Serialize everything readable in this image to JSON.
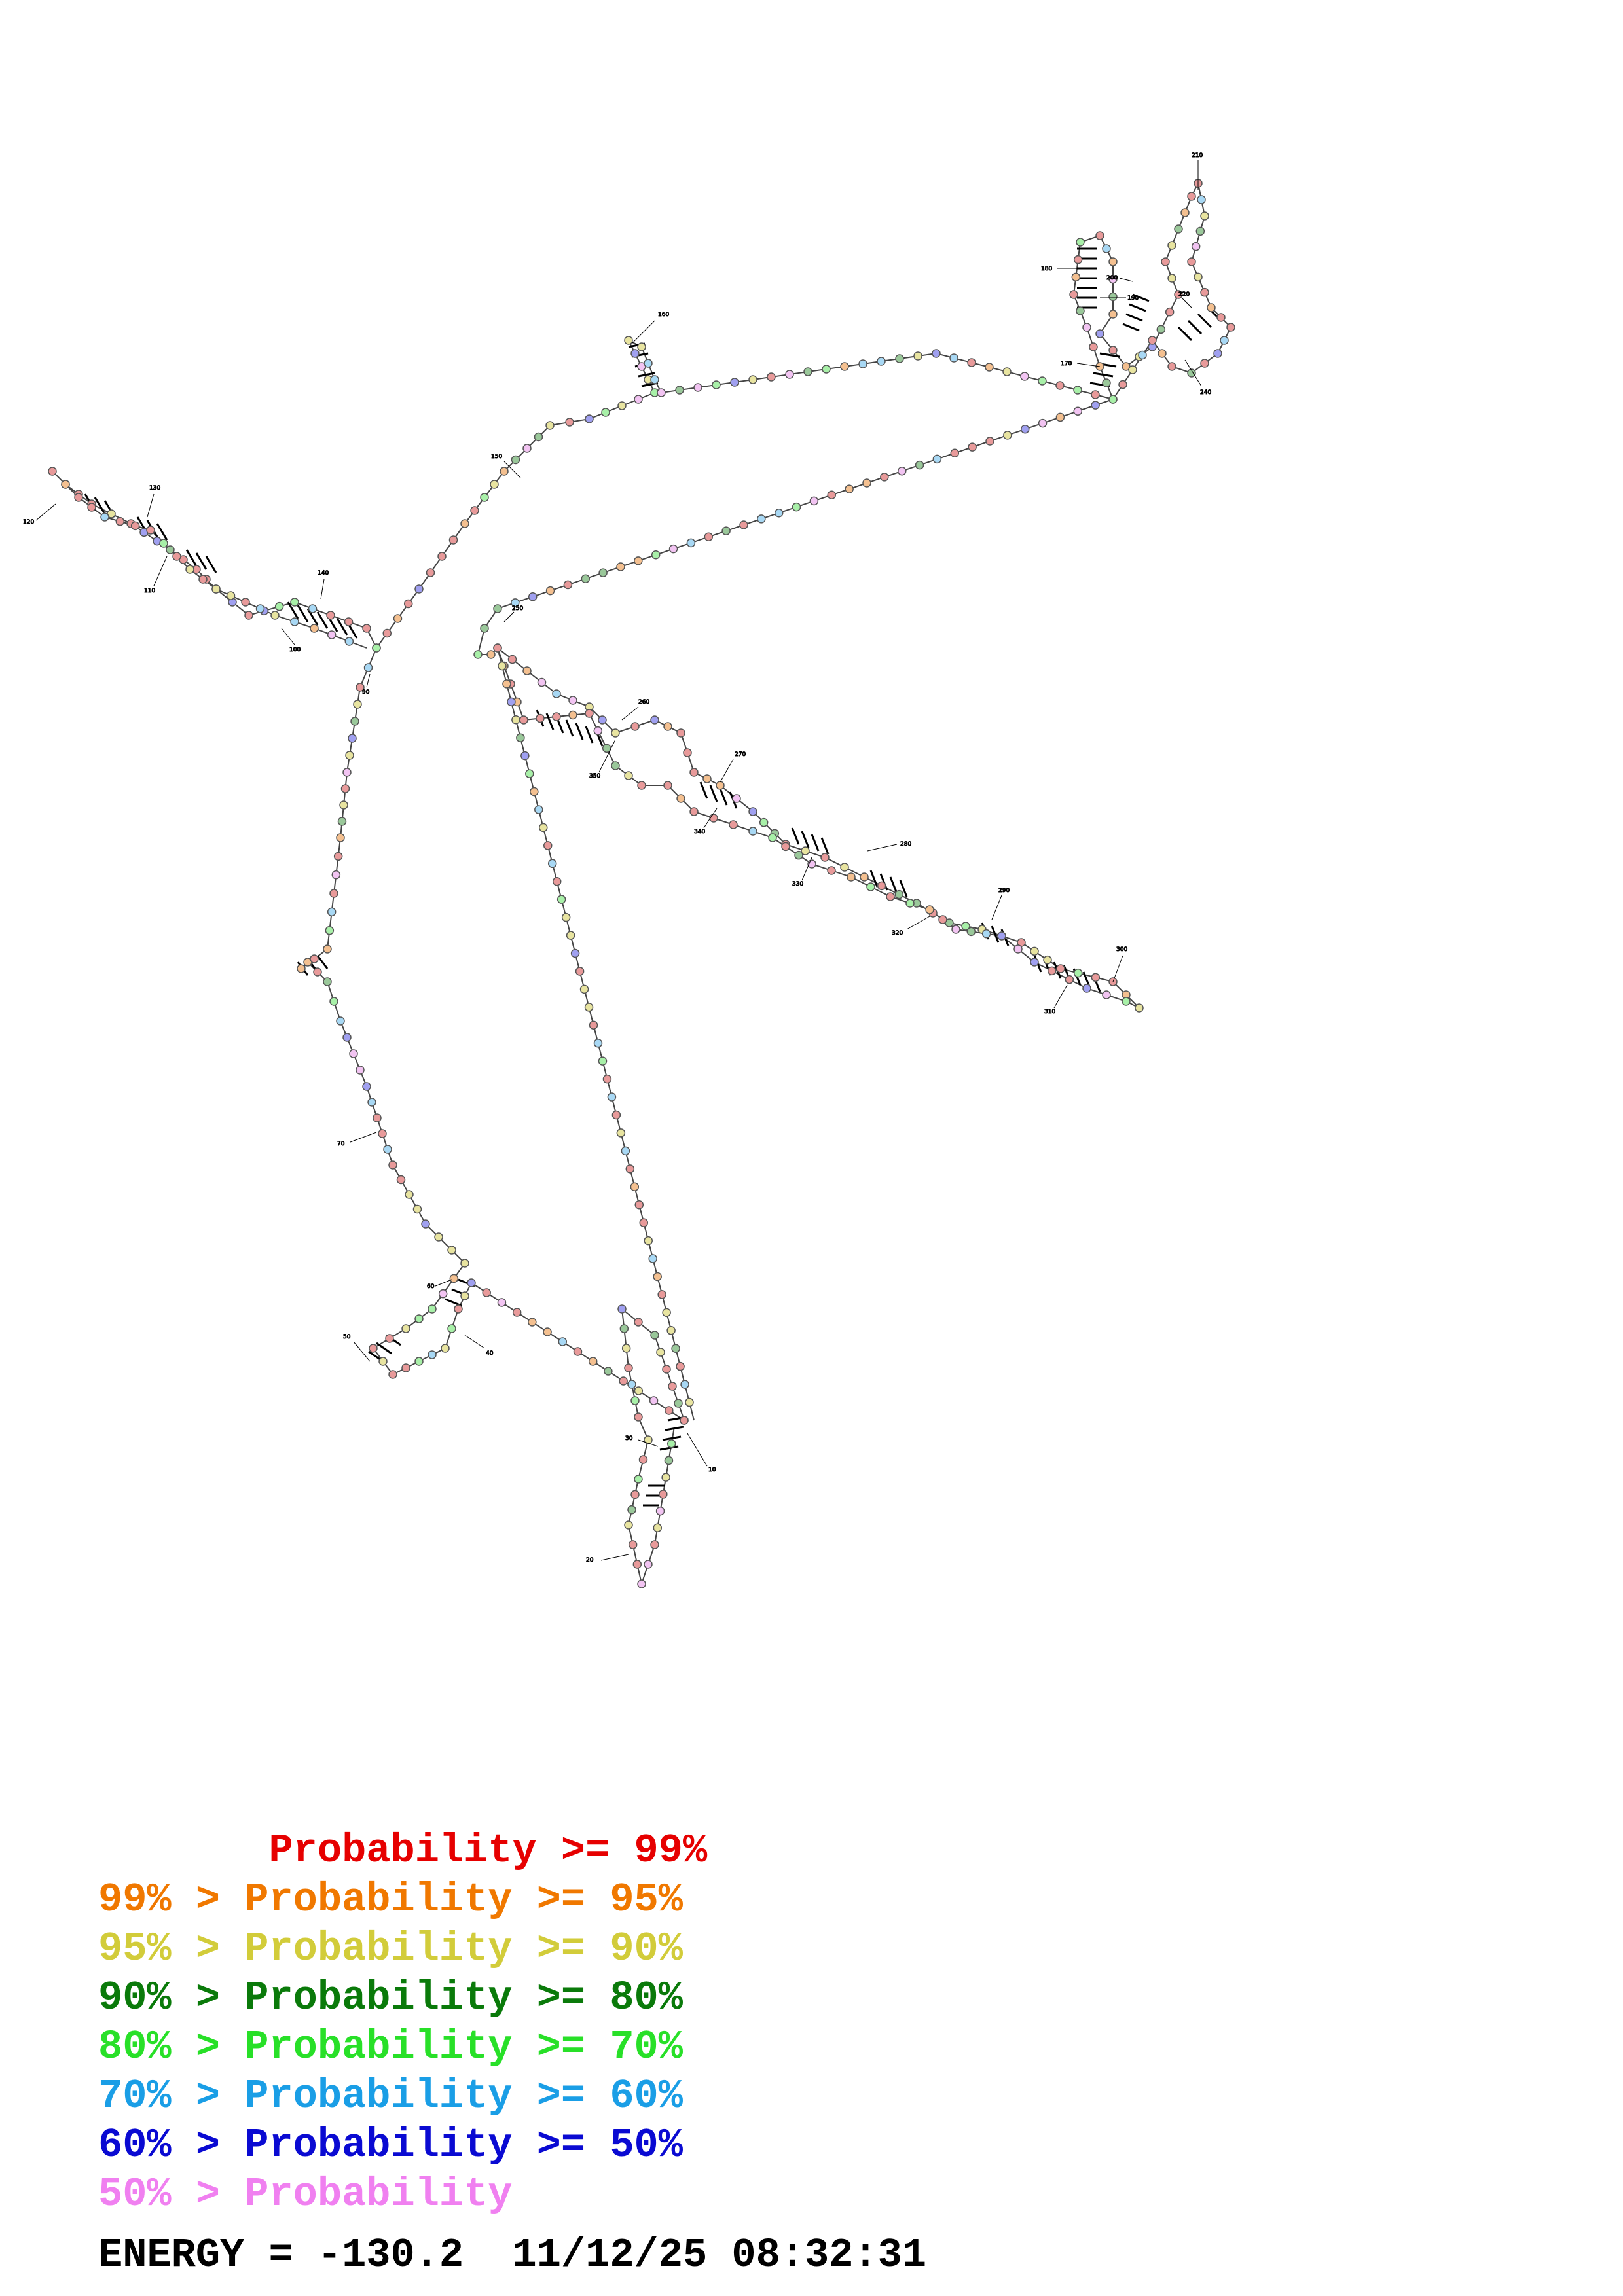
{
  "legend": [
    {
      "prefix": "       ",
      "text": "Probability >= 99%",
      "color": "#e60000"
    },
    {
      "prefix": "99% > ",
      "text": "Probability >= 95%",
      "color": "#f07800"
    },
    {
      "prefix": "95% > ",
      "text": "Probability >= 90%",
      "color": "#d2cc3a"
    },
    {
      "prefix": "90% > ",
      "text": "Probability >= 80%",
      "color": "#0a7a0a"
    },
    {
      "prefix": "80% > ",
      "text": "Probability >= 70%",
      "color": "#28e028"
    },
    {
      "prefix": "70% > ",
      "text": "Probability >= 60%",
      "color": "#1a9ee6"
    },
    {
      "prefix": "60% > ",
      "text": "Probability >= 50%",
      "color": "#0a0ad2"
    },
    {
      "prefix": "50% > ",
      "text": "Probability",
      "color": "#f080f0"
    }
  ],
  "footer": {
    "energy_label": "ENERGY = ",
    "energy_value": "-130.2",
    "timestamp": "11/12/25 08:32:31"
  },
  "labels": [
    "10",
    "20",
    "30",
    "40",
    "50",
    "60",
    "70",
    "90",
    "100",
    "110",
    "120",
    "130",
    "140",
    "150",
    "160",
    "170",
    "180",
    "190",
    "200",
    "210",
    "220",
    "240",
    "250",
    "260",
    "270",
    "280",
    "290",
    "300",
    "310",
    "320",
    "330",
    "340",
    "350"
  ],
  "colors": {
    "c99": "#e89a9a",
    "c95": "#f4c090",
    "c90": "#e8e4a0",
    "c80": "#9ac89a",
    "c70": "#a8f0a8",
    "c60": "#a8d8f4",
    "c50": "#a0a0f0",
    "clow": "#f2c4f2",
    "stroke": "#555555"
  }
}
